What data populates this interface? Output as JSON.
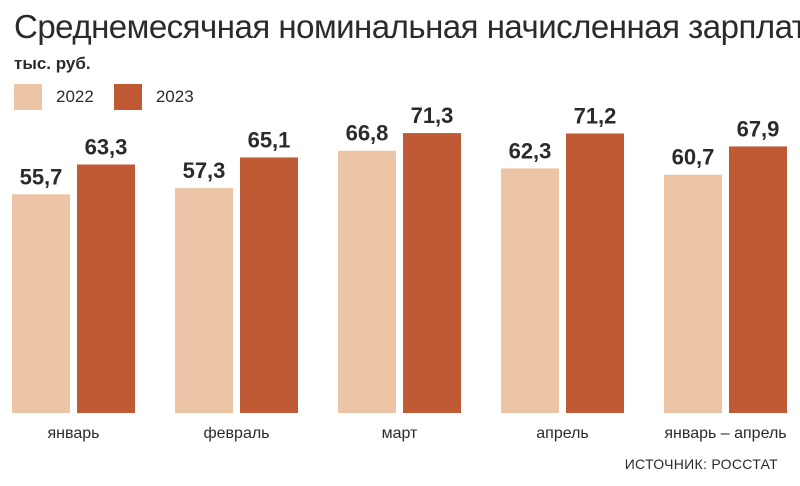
{
  "chart_data": {
    "type": "bar",
    "title": "Среднемесячная номинальная начисленная зарплата",
    "ylabel": "тыс. руб.",
    "categories": [
      "январь",
      "февраль",
      "март",
      "апрель",
      "январь – апрель"
    ],
    "series": [
      {
        "name": "2022",
        "color": "#ebc5a6",
        "values": [
          55.7,
          57.3,
          66.8,
          62.3,
          60.7
        ],
        "labels": [
          "55,7",
          "57,3",
          "66,8",
          "62,3",
          "60,7"
        ]
      },
      {
        "name": "2023",
        "color": "#c05a35",
        "values": [
          63.3,
          65.1,
          71.3,
          71.2,
          67.9
        ],
        "labels": [
          "63,3",
          "65,1",
          "71,3",
          "71,2",
          "67,9"
        ]
      }
    ],
    "legend": "top-left",
    "grid": false
  },
  "source": "ИСТОЧНИК: РОССТАТ"
}
